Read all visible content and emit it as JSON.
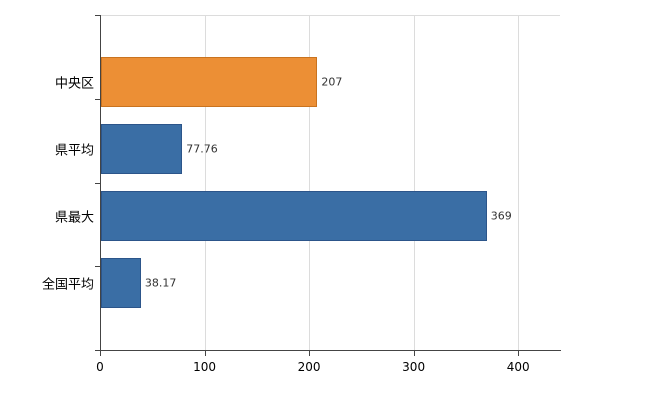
{
  "chart_data": {
    "type": "bar",
    "orientation": "horizontal",
    "title": "",
    "xlabel": "",
    "ylabel": "",
    "categories": [
      "中央区",
      "県平均",
      "県最大",
      "全国平均"
    ],
    "values": [
      207,
      77.76,
      369,
      38.17
    ],
    "value_labels": [
      "207",
      "77.76",
      "369",
      "38.17"
    ],
    "bar_colors": [
      "#EC8F35",
      "#3A6EA5",
      "#3A6EA5",
      "#3A6EA5"
    ],
    "bar_border_colors": [
      "#C9731F",
      "#2C558A",
      "#2C558A",
      "#2C558A"
    ],
    "xlim": [
      0,
      440
    ],
    "x_ticks": [
      0,
      100,
      200,
      300,
      400
    ],
    "grid": true,
    "legend": false
  },
  "colors": {
    "background": "#FFFFFF",
    "grid": "#DCDCDC",
    "axis": "#444444",
    "text": "#000000",
    "value_text": "#333333"
  }
}
